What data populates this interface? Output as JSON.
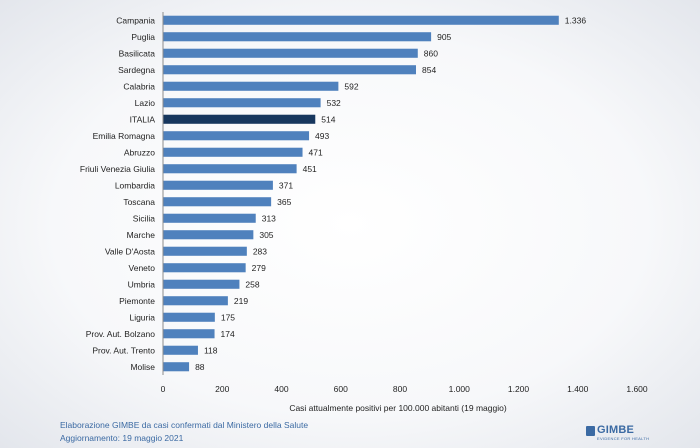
{
  "chart_data": {
    "type": "bar",
    "orientation": "horizontal",
    "categories": [
      "Campania",
      "Puglia",
      "Basilicata",
      "Sardegna",
      "Calabria",
      "Lazio",
      "ITALIA",
      "Emilia Romagna",
      "Abruzzo",
      "Friuli Venezia Giulia",
      "Lombardia",
      "Toscana",
      "Sicilia",
      "Marche",
      "Valle D'Aosta",
      "Veneto",
      "Umbria",
      "Piemonte",
      "Liguria",
      "Prov. Aut. Bolzano",
      "Prov. Aut. Trento",
      "Molise"
    ],
    "values": [
      1336,
      905,
      860,
      854,
      592,
      532,
      514,
      493,
      471,
      451,
      371,
      365,
      313,
      305,
      283,
      279,
      258,
      219,
      175,
      174,
      118,
      88
    ],
    "value_labels": [
      "1.336",
      "905",
      "860",
      "854",
      "592",
      "532",
      "514",
      "493",
      "471",
      "451",
      "371",
      "365",
      "313",
      "305",
      "283",
      "279",
      "258",
      "219",
      "175",
      "174",
      "118",
      "88"
    ],
    "highlight_category": "ITALIA",
    "xlabel": "Casi attualmente positivi per 100.000 abitanti (19 maggio)",
    "ylabel": "",
    "xlim": [
      0,
      1600
    ],
    "xticks": [
      0,
      200,
      400,
      600,
      800,
      1000,
      1200,
      1400,
      1600
    ],
    "xtick_labels": [
      "0",
      "200",
      "400",
      "600",
      "800",
      "1.000",
      "1.200",
      "1.400",
      "1.600"
    ],
    "grid": false,
    "colors": {
      "bar": "#4f81bd",
      "highlight": "#17375e"
    }
  },
  "footer": {
    "source": "Elaborazione GIMBE da casi confermati dal Ministero della Salute",
    "updated": "Aggiornamento: 19 maggio 2021"
  },
  "logo": {
    "name": "GIMBE",
    "tagline": "EVIDENCE FOR HEALTH"
  }
}
